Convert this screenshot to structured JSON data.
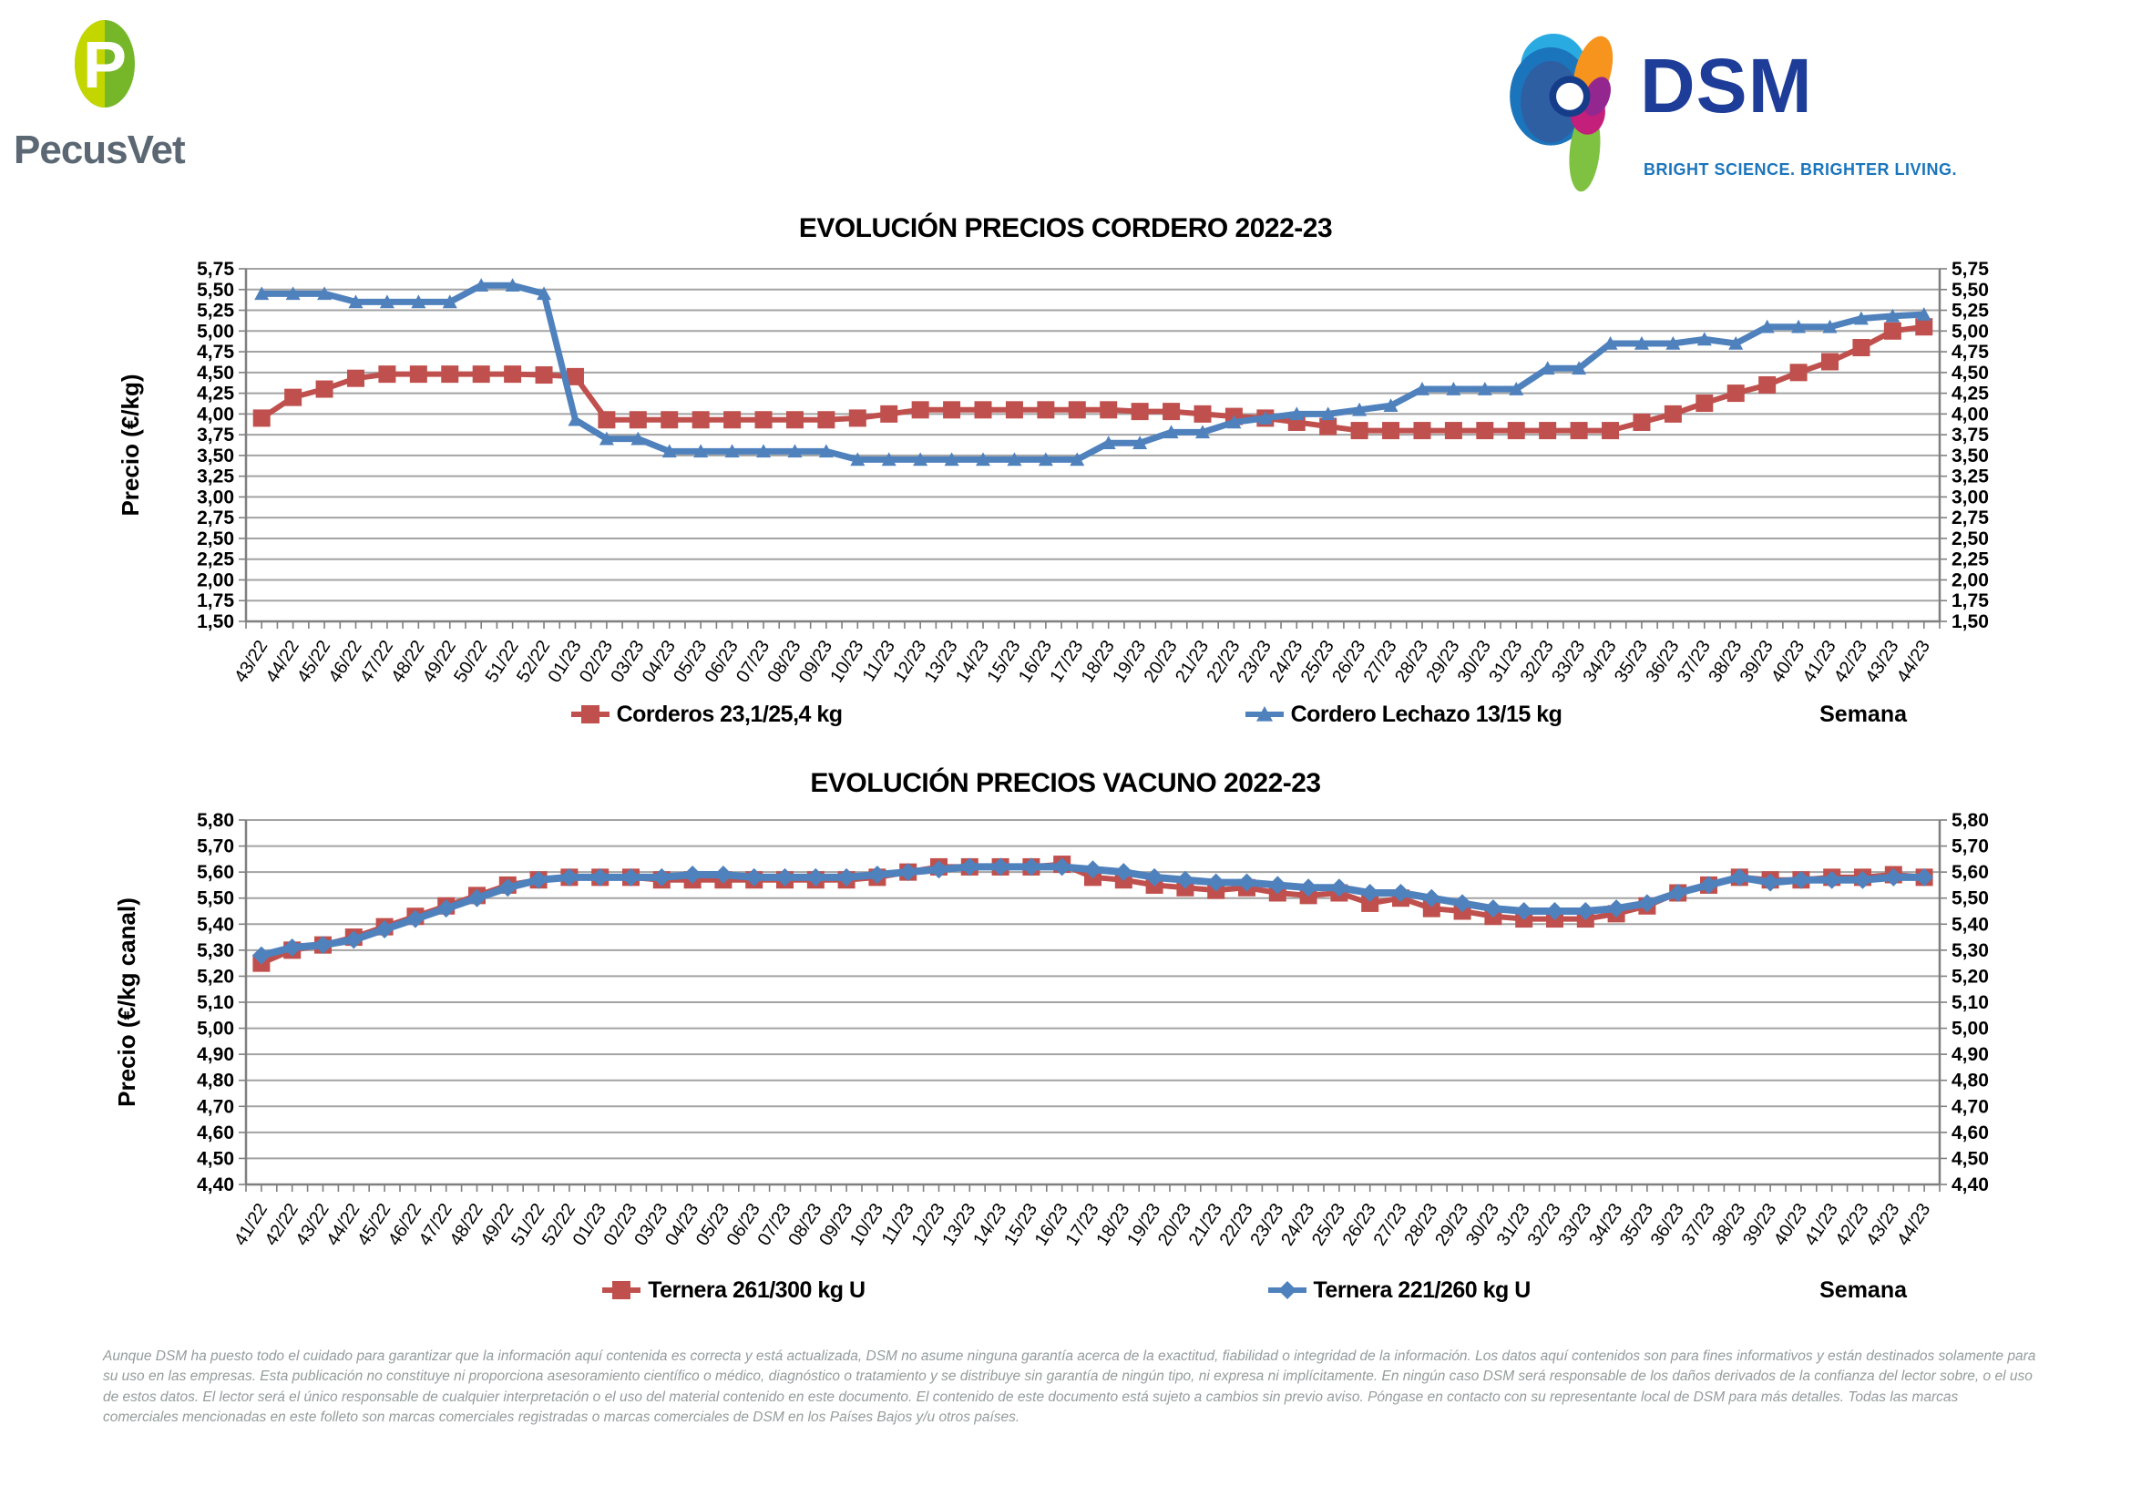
{
  "header": {
    "pecusvet": {
      "name": "PecusVet",
      "mark_letter": "P",
      "mark_color_left": "#c3d600",
      "mark_color_right": "#76b72a",
      "text_color": "#5b6773"
    },
    "dsm": {
      "name": "DSM",
      "tagline": "BRIGHT SCIENCE. BRIGHTER LIVING.",
      "text_color": "#1e3d98",
      "tagline_color": "#1b75bc"
    }
  },
  "chart_data": [
    {
      "type": "line",
      "title": "EVOLUCIÓN PRECIOS CORDERO 2022-23",
      "xlabel": "Semana",
      "ylabel": "Precio (€/kg)",
      "ylim": [
        1.5,
        5.75
      ],
      "ytick_step": 0.25,
      "decimal_separator": ",",
      "grid": true,
      "legend_position": "bottom",
      "gridline_color": "#a3a3a3",
      "categories": [
        "43/22",
        "44/22",
        "45/22",
        "46/22",
        "47/22",
        "48/22",
        "49/22",
        "50/22",
        "51/22",
        "52/22",
        "01/23",
        "02/23",
        "03/23",
        "04/23",
        "05/23",
        "06/23",
        "07/23",
        "08/23",
        "09/23",
        "10/23",
        "11/23",
        "12/23",
        "13/23",
        "14/23",
        "15/23",
        "16/23",
        "17/23",
        "18/23",
        "19/23",
        "20/23",
        "21/23",
        "22/23",
        "23/23",
        "24/23",
        "25/23",
        "26/23",
        "27/23",
        "28/23",
        "29/23",
        "30/23",
        "31/23",
        "32/23",
        "33/23",
        "34/23",
        "35/23",
        "36/23",
        "37/23",
        "38/23",
        "39/23",
        "40/23",
        "41/23",
        "42/23",
        "43/23",
        "44/23"
      ],
      "series": [
        {
          "name": "Corderos 23,1/25,4 kg",
          "color": "#c0504d",
          "marker": "square",
          "line_width": 6,
          "values": [
            3.95,
            4.2,
            4.3,
            4.43,
            4.48,
            4.48,
            4.48,
            4.48,
            4.48,
            4.47,
            4.45,
            3.93,
            3.93,
            3.93,
            3.93,
            3.93,
            3.93,
            3.93,
            3.93,
            3.95,
            4.0,
            4.05,
            4.05,
            4.05,
            4.05,
            4.05,
            4.05,
            4.05,
            4.03,
            4.03,
            4.0,
            3.97,
            3.95,
            3.9,
            3.85,
            3.8,
            3.8,
            3.8,
            3.8,
            3.8,
            3.8,
            3.8,
            3.8,
            3.8,
            3.9,
            4.0,
            4.13,
            4.25,
            4.35,
            4.5,
            4.63,
            4.8,
            5.0,
            5.05
          ]
        },
        {
          "name": "Cordero Lechazo 13/15 kg",
          "color": "#4f81bd",
          "marker": "triangle",
          "line_width": 7,
          "values": [
            5.45,
            5.45,
            5.45,
            5.35,
            5.35,
            5.35,
            5.35,
            5.55,
            5.55,
            5.45,
            3.93,
            3.7,
            3.7,
            3.55,
            3.55,
            3.55,
            3.55,
            3.55,
            3.55,
            3.45,
            3.45,
            3.45,
            3.45,
            3.45,
            3.45,
            3.45,
            3.45,
            3.65,
            3.65,
            3.78,
            3.78,
            3.9,
            3.95,
            4.0,
            4.0,
            4.05,
            4.1,
            4.3,
            4.3,
            4.3,
            4.3,
            4.55,
            4.55,
            4.85,
            4.85,
            4.85,
            4.9,
            4.85,
            5.05,
            5.05,
            5.05,
            5.15,
            5.18,
            5.2
          ]
        }
      ]
    },
    {
      "type": "line",
      "title": "EVOLUCIÓN PRECIOS VACUNO 2022-23",
      "xlabel": "Semana",
      "ylabel": "Precio (€/kg canal)",
      "ylim": [
        4.4,
        5.8
      ],
      "ytick_step": 0.1,
      "decimal_separator": ",",
      "grid": true,
      "legend_position": "bottom",
      "gridline_color": "#a3a3a3",
      "categories": [
        "41/22",
        "42/22",
        "43/22",
        "44/22",
        "45/22",
        "46/22",
        "47/22",
        "48/22",
        "49/22",
        "51/22",
        "52/22",
        "01/23",
        "02/23",
        "03/23",
        "04/23",
        "05/23",
        "06/23",
        "07/23",
        "08/23",
        "09/23",
        "10/23",
        "11/23",
        "12/23",
        "13/23",
        "14/23",
        "15/23",
        "16/23",
        "17/23",
        "18/23",
        "19/23",
        "20/23",
        "21/23",
        "22/23",
        "23/23",
        "24/23",
        "25/23",
        "26/23",
        "27/23",
        "28/23",
        "29/23",
        "30/23",
        "31/23",
        "32/23",
        "33/23",
        "34/23",
        "35/23",
        "36/23",
        "37/23",
        "38/23",
        "39/23",
        "40/23",
        "41/23",
        "42/23",
        "43/23",
        "44/23"
      ],
      "series": [
        {
          "name": "Ternera 261/300 kg U",
          "color": "#c0504d",
          "marker": "square",
          "line_width": 6,
          "values": [
            5.25,
            5.3,
            5.32,
            5.35,
            5.39,
            5.43,
            5.47,
            5.51,
            5.55,
            5.57,
            5.58,
            5.58,
            5.58,
            5.57,
            5.57,
            5.57,
            5.57,
            5.57,
            5.57,
            5.57,
            5.58,
            5.6,
            5.62,
            5.62,
            5.62,
            5.62,
            5.63,
            5.58,
            5.57,
            5.55,
            5.54,
            5.53,
            5.54,
            5.52,
            5.51,
            5.52,
            5.48,
            5.5,
            5.46,
            5.45,
            5.43,
            5.42,
            5.42,
            5.42,
            5.44,
            5.47,
            5.52,
            5.55,
            5.58,
            5.57,
            5.57,
            5.58,
            5.58,
            5.59,
            5.58
          ]
        },
        {
          "name": "Ternera 221/260 kg U",
          "color": "#4f81bd",
          "marker": "diamond",
          "line_width": 8,
          "values": [
            5.28,
            5.31,
            5.32,
            5.34,
            5.38,
            5.42,
            5.46,
            5.5,
            5.54,
            5.57,
            5.58,
            5.58,
            5.58,
            5.58,
            5.59,
            5.59,
            5.58,
            5.58,
            5.58,
            5.58,
            5.59,
            5.6,
            5.61,
            5.62,
            5.62,
            5.62,
            5.62,
            5.61,
            5.6,
            5.58,
            5.57,
            5.56,
            5.56,
            5.55,
            5.54,
            5.54,
            5.52,
            5.52,
            5.5,
            5.48,
            5.46,
            5.45,
            5.45,
            5.45,
            5.46,
            5.48,
            5.52,
            5.55,
            5.58,
            5.56,
            5.57,
            5.57,
            5.57,
            5.58,
            5.58
          ]
        }
      ]
    }
  ],
  "footer": {
    "disclaimer": "Aunque DSM ha puesto todo el cuidado para garantizar que la información aquí contenida es correcta y está actualizada, DSM no asume ninguna garantía acerca de la exactitud, fiabilidad o integridad de la información. Los datos aquí contenidos son para fines informativos y están destinados solamente para su uso en las empresas. Esta publicación no constituye ni proporciona asesoramiento científico o médico, diagnóstico o tratamiento y se distribuye sin garantía de ningún tipo, ni expresa ni implícitamente. En ningún caso DSM será responsable de los daños derivados de la confianza del lector sobre, o el uso de estos datos. El lector será el único responsable de cualquier interpretación o el uso del material contenido en este documento. El contenido de este documento está sujeto a cambios sin previo aviso. Póngase en contacto con su representante local de DSM para más detalles. Todas las marcas comerciales mencionadas en este folleto son marcas comerciales registradas o marcas comerciales de DSM en los Países Bajos y/u otros países."
  }
}
